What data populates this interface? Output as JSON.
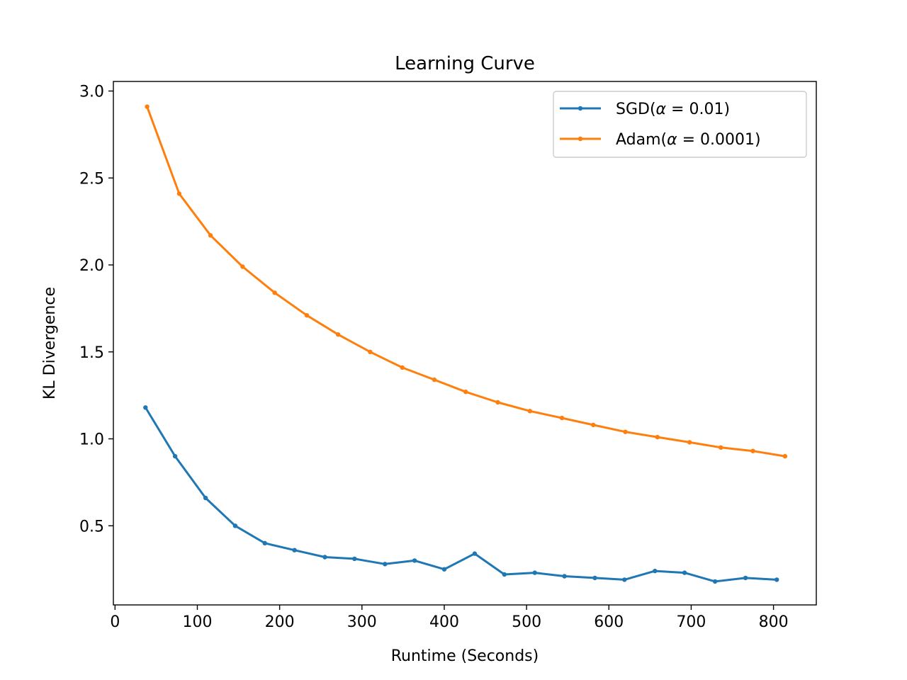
{
  "chart_data": {
    "type": "line",
    "title": "Learning Curve",
    "xlabel": "Runtime (Seconds)",
    "ylabel": "KL Divergence",
    "xlim": [
      -2,
      852
    ],
    "ylim": [
      0.045,
      3.055
    ],
    "xticks": [
      0,
      100,
      200,
      300,
      400,
      500,
      600,
      700,
      800
    ],
    "yticks": [
      0.5,
      1.0,
      1.5,
      2.0,
      2.5,
      3.0
    ],
    "ytick_labels": [
      "0.5",
      "1.0",
      "1.5",
      "2.0",
      "2.5",
      "3.0"
    ],
    "grid": false,
    "legend_position": "upper right",
    "series": [
      {
        "name": "SGD(α = 0.01)",
        "legend_prefix": "SGD(",
        "legend_symbol": "α",
        "legend_suffix": " = 0.01)",
        "color": "#1f77b4",
        "x": [
          37,
          73,
          110,
          146,
          182,
          218,
          255,
          291,
          328,
          364,
          400,
          437,
          473,
          510,
          546,
          583,
          619,
          656,
          692,
          729,
          766,
          804
        ],
        "y": [
          1.18,
          0.9,
          0.66,
          0.5,
          0.4,
          0.36,
          0.32,
          0.31,
          0.28,
          0.3,
          0.25,
          0.34,
          0.22,
          0.23,
          0.21,
          0.2,
          0.19,
          0.24,
          0.23,
          0.18,
          0.2,
          0.19
        ]
      },
      {
        "name": "Adam(α = 0.0001)",
        "legend_prefix": "Adam(",
        "legend_symbol": "α",
        "legend_suffix": " = 0.0001)",
        "color": "#ff7f0e",
        "x": [
          39,
          78,
          116,
          155,
          194,
          233,
          271,
          310,
          349,
          388,
          426,
          465,
          504,
          543,
          581,
          620,
          659,
          698,
          736,
          775,
          814
        ],
        "y": [
          2.91,
          2.41,
          2.17,
          1.99,
          1.84,
          1.71,
          1.6,
          1.5,
          1.41,
          1.34,
          1.27,
          1.21,
          1.16,
          1.12,
          1.08,
          1.04,
          1.01,
          0.98,
          0.95,
          0.93,
          0.9
        ]
      }
    ]
  }
}
